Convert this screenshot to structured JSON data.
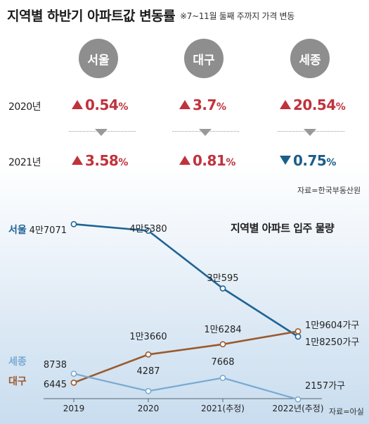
{
  "header": {
    "title": "지역별 하반기 아파트값 변동률",
    "subtitle": "※7~11월 둘째 주까지 가격 변동"
  },
  "change_table": {
    "regions": [
      "서울",
      "대구",
      "세종"
    ],
    "rows": [
      {
        "year": "2020년",
        "values": [
          {
            "num": "0.54",
            "unit": "%",
            "dir": "up"
          },
          {
            "num": "3.7",
            "unit": "%",
            "dir": "up"
          },
          {
            "num": "20.54",
            "unit": "%",
            "dir": "up"
          }
        ]
      },
      {
        "year": "2021년",
        "values": [
          {
            "num": "3.58",
            "unit": "%",
            "dir": "up"
          },
          {
            "num": "0.81",
            "unit": "%",
            "dir": "up"
          },
          {
            "num": "0.75",
            "unit": "%",
            "dir": "down"
          }
        ]
      }
    ],
    "source": "자료=한국부동산원"
  },
  "colors": {
    "up": "#c0323c",
    "down": "#1b5e8a",
    "seoul": "#1f6494",
    "daegu": "#9a5a2e",
    "sejong": "#7aaad2"
  },
  "chart_data": {
    "type": "line",
    "title": "지역별 아파트 입주 물량",
    "categories": [
      "2019",
      "2020",
      "2021(추정)",
      "2022년(추정)"
    ],
    "series": [
      {
        "name": "서울",
        "values": [
          47071,
          45380,
          30595,
          18250
        ],
        "labels": [
          "4만7071",
          "4만5380",
          "3만595",
          "1만8250가구"
        ]
      },
      {
        "name": "대구",
        "values": [
          6445,
          13660,
          16284,
          19604
        ],
        "labels": [
          "6445",
          "1만3660",
          "1만6284",
          "1만9604가구"
        ]
      },
      {
        "name": "세종",
        "values": [
          8738,
          4287,
          7668,
          2157
        ],
        "labels": [
          "8738",
          "4287",
          "7668",
          "2157가구"
        ]
      }
    ],
    "ylim": [
      0,
      50000
    ],
    "grid": false,
    "source": "자료=아실"
  }
}
